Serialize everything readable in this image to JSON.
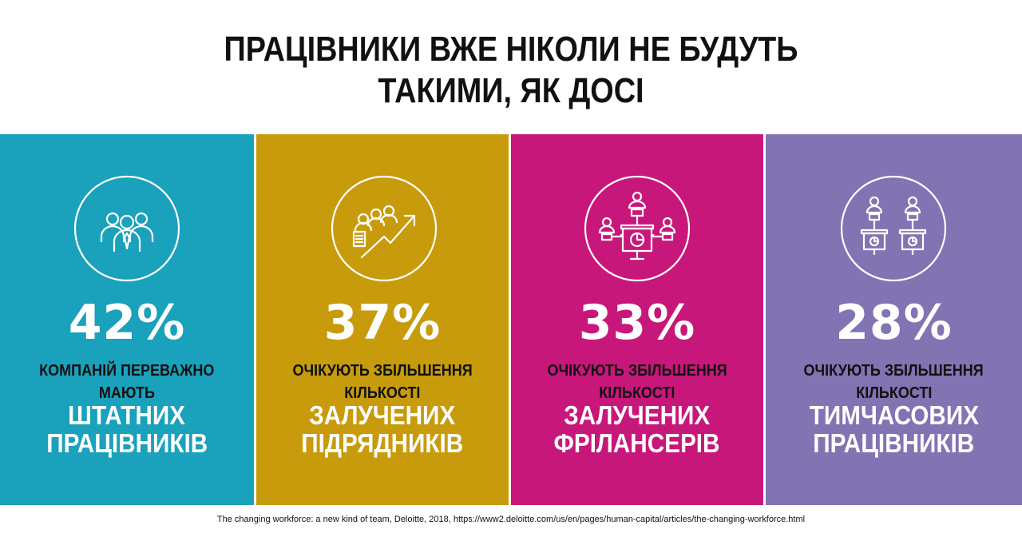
{
  "title": {
    "line1": "ПРАЦІВНИКИ ВЖЕ НІКОЛИ НЕ БУДУТЬ",
    "line2": "ТАКИМИ, ЯК ДОСІ"
  },
  "panels": [
    {
      "color": "#1aa1bb",
      "icon": "group-of-employees-icon",
      "percent": "42%",
      "desc_line1": "КОМПАНІЙ ПЕРЕВАЖНО",
      "desc_line2": "МАЮТЬ",
      "big_line1": "ШТАТНИХ",
      "big_line2": "ПРАЦІВНИКІВ"
    },
    {
      "color": "#c79b0b",
      "icon": "growing-team-chart-icon",
      "percent": "37%",
      "desc_line1": "ОЧІКУЮТЬ ЗБІЛЬШЕННЯ",
      "desc_line2": "КІЛЬКОСТІ",
      "big_line1": "ЗАЛУЧЕНИХ",
      "big_line2": "ПІДРЯДНИКІВ"
    },
    {
      "color": "#c8177a",
      "icon": "network-freelancers-icon",
      "percent": "33%",
      "desc_line1": "ОЧІКУЮТЬ ЗБІЛЬШЕННЯ",
      "desc_line2": "КІЛЬКОСТІ",
      "big_line1": "ЗАЛУЧЕНИХ",
      "big_line2": "ФРІЛАНСЕРІВ"
    },
    {
      "color": "#8273b3",
      "icon": "temporary-workers-icon",
      "percent": "28%",
      "desc_line1": "ОЧІКУЮТЬ ЗБІЛЬШЕННЯ",
      "desc_line2": "КІЛЬКОСТІ",
      "big_line1": "ТИМЧАСОВИХ",
      "big_line2": "ПРАЦІВНИКІВ"
    }
  ],
  "source": "The changing workforce: a new kind of team, Deloitte, 2018, https://www2.deloitte.com/us/en/pages/human-capital/articles/the-changing-workforce.html"
}
